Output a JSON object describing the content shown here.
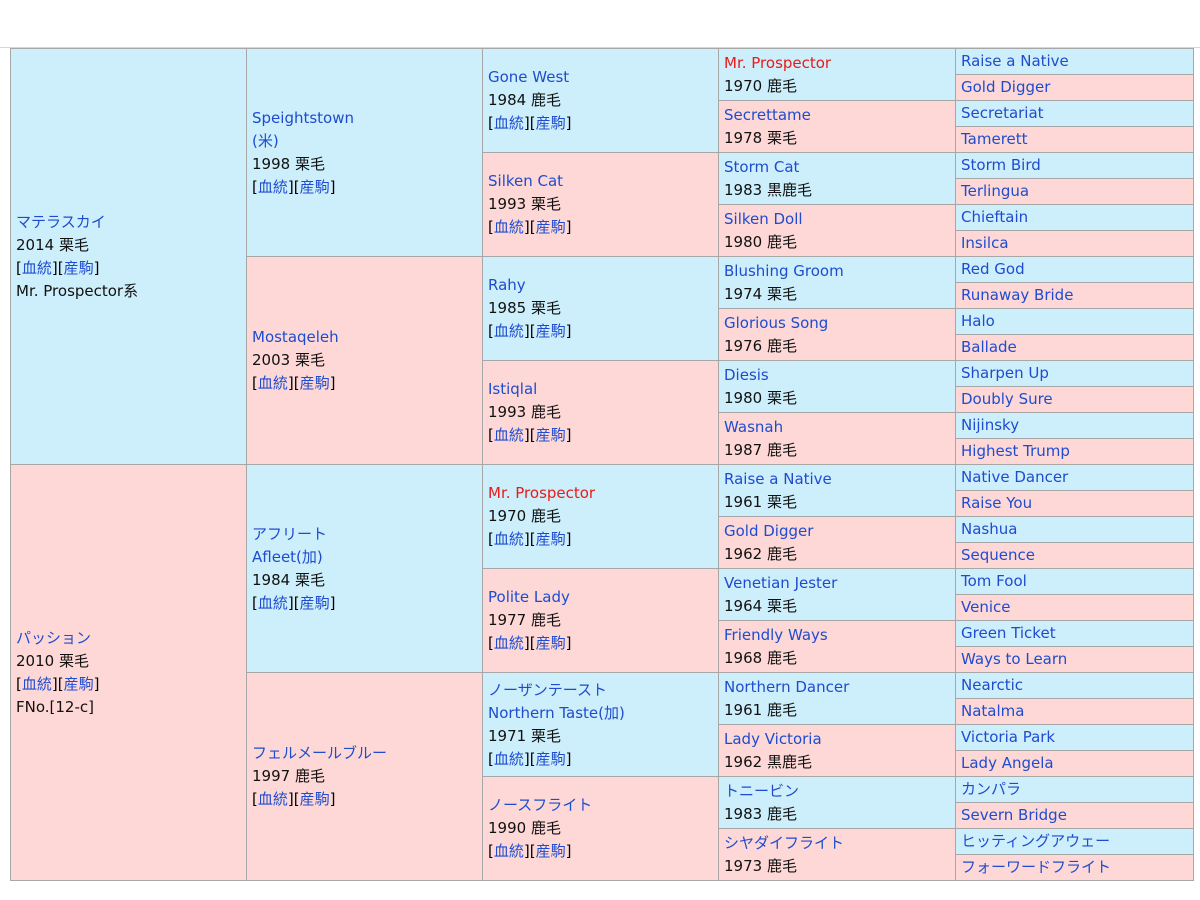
{
  "links": {
    "bloodline": "血統",
    "produce": "産駒"
  },
  "gen1": [
    {
      "name": "マテラスカイ",
      "info": "2014 栗毛",
      "extra": "Mr. Prospector系"
    },
    {
      "name": "パッション",
      "info": "2010 栗毛",
      "extra": "FNo.[12-c]"
    }
  ],
  "gen2": [
    {
      "name": "Speightstown",
      "name2": "(米)",
      "info": "1998 栗毛"
    },
    {
      "name": "Mostaqeleh",
      "info": "2003 栗毛"
    },
    {
      "name": "アフリート",
      "name2": "Afleet(加)",
      "info": "1984 栗毛"
    },
    {
      "name": "フェルメールブルー",
      "info": "1997 鹿毛"
    }
  ],
  "gen3": [
    {
      "name": "Gone West",
      "info": "1984 鹿毛"
    },
    {
      "name": "Silken Cat",
      "info": "1993 栗毛"
    },
    {
      "name": "Rahy",
      "info": "1985 栗毛"
    },
    {
      "name": "Istiqlal",
      "info": "1993 鹿毛"
    },
    {
      "name": "Mr. Prospector",
      "info": "1970 鹿毛"
    },
    {
      "name": "Polite Lady",
      "info": "1977 鹿毛"
    },
    {
      "name": "ノーザンテースト",
      "name2": "Northern Taste(加)",
      "info": "1971 栗毛"
    },
    {
      "name": "ノースフライト",
      "info": "1990 鹿毛"
    }
  ],
  "gen4": [
    {
      "name": "Mr. Prospector",
      "info": "1970 鹿毛"
    },
    {
      "name": "Secrettame",
      "info": "1978 栗毛"
    },
    {
      "name": "Storm Cat",
      "info": "1983 黒鹿毛"
    },
    {
      "name": "Silken Doll",
      "info": "1980 鹿毛"
    },
    {
      "name": "Blushing Groom",
      "info": "1974 栗毛"
    },
    {
      "name": "Glorious Song",
      "info": "1976 鹿毛"
    },
    {
      "name": "Diesis",
      "info": "1980 栗毛"
    },
    {
      "name": "Wasnah",
      "info": "1987 鹿毛"
    },
    {
      "name": "Raise a Native",
      "info": "1961 栗毛"
    },
    {
      "name": "Gold Digger",
      "info": "1962 鹿毛"
    },
    {
      "name": "Venetian Jester",
      "info": "1964 栗毛"
    },
    {
      "name": "Friendly Ways",
      "info": "1968 鹿毛"
    },
    {
      "name": "Northern Dancer",
      "info": "1961 鹿毛"
    },
    {
      "name": "Lady Victoria",
      "info": "1962 黒鹿毛"
    },
    {
      "name": "トニービン",
      "info": "1983 鹿毛"
    },
    {
      "name": "シヤダイフライト",
      "info": "1973 鹿毛"
    }
  ],
  "gen5": [
    "Raise a Native",
    "Gold Digger",
    "Secretariat",
    "Tamerett",
    "Storm Bird",
    "Terlingua",
    "Chieftain",
    "Insilca",
    "Red God",
    "Runaway Bride",
    "Halo",
    "Ballade",
    "Sharpen Up",
    "Doubly Sure",
    "Nijinsky",
    "Highest Trump",
    "Native Dancer",
    "Raise You",
    "Nashua",
    "Sequence",
    "Tom Fool",
    "Venice",
    "Green Ticket",
    "Ways to Learn",
    "Nearctic",
    "Natalma",
    "Victoria Park",
    "Lady Angela",
    "カンパラ",
    "Severn Bridge",
    "ヒッティングアウェー",
    "フォーワードフライト"
  ]
}
